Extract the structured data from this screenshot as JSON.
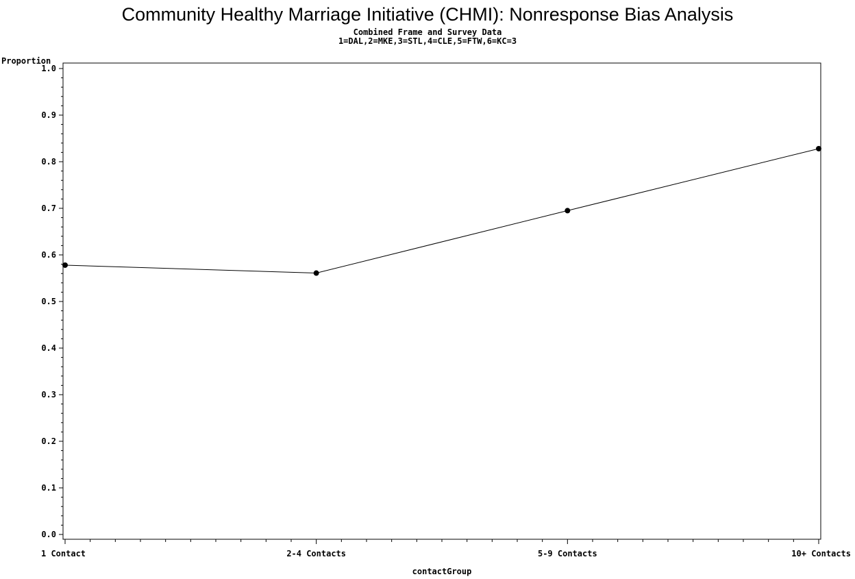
{
  "chart_data": {
    "type": "line",
    "title": "Community Healthy Marriage Initiative (CHMI): Nonresponse Bias Analysis",
    "subtitle_lines": [
      "Combined Frame and Survey Data",
      "1=DAL,2=MKE,3=STL,4=CLE,5=FTW,6=KC=3"
    ],
    "xlabel": "contactGroup",
    "ylabel": "Proportion",
    "categories": [
      "1 Contact",
      "2-4 Contacts",
      "5-9 Contacts",
      "10+ Contacts"
    ],
    "values": [
      0.578,
      0.561,
      0.695,
      0.828
    ],
    "ylim": [
      0.0,
      1.0
    ],
    "yticks": [
      "0.0",
      "0.1",
      "0.2",
      "0.3",
      "0.4",
      "0.5",
      "0.6",
      "0.7",
      "0.8",
      "0.9",
      "1.0"
    ],
    "grid": false,
    "marker": "filled-circle",
    "line_color": "#000000"
  }
}
